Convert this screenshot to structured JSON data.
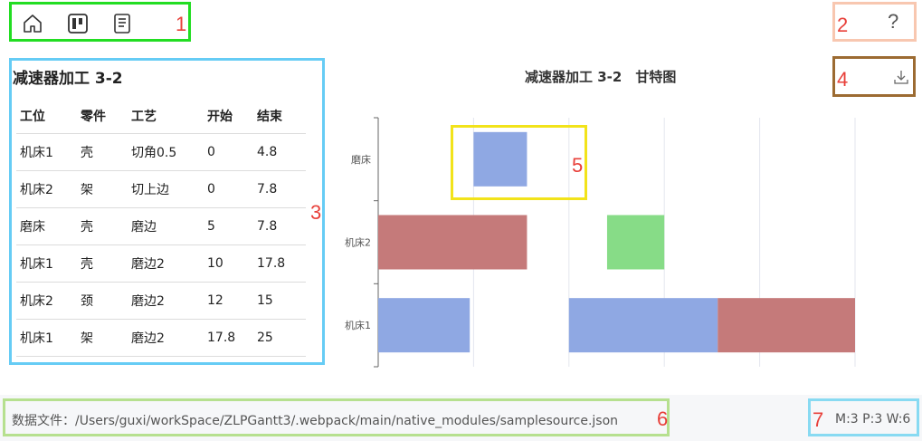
{
  "toolbar": {
    "icons": [
      "home-icon",
      "board-icon",
      "document-icon"
    ],
    "callout": "1"
  },
  "help": {
    "glyph": "?",
    "callout": "2"
  },
  "table": {
    "title": "减速器加工 3-2",
    "callout": "3",
    "columns": [
      "工位",
      "零件",
      "工艺",
      "开始",
      "结束"
    ],
    "rows": [
      [
        "机床1",
        "壳",
        "切角0.5",
        "0",
        "4.8"
      ],
      [
        "机床2",
        "架",
        "切上边",
        "0",
        "7.8"
      ],
      [
        "磨床",
        "壳",
        "磨边",
        "5",
        "7.8"
      ],
      [
        "机床1",
        "壳",
        "磨边2",
        "10",
        "17.8"
      ],
      [
        "机床2",
        "颈",
        "磨边2",
        "12",
        "15"
      ],
      [
        "机床1",
        "架",
        "磨边2",
        "17.8",
        "25"
      ]
    ]
  },
  "gantt": {
    "title": "减速器加工 3-2　甘特图",
    "download_callout": "4",
    "download_icon": "download-icon",
    "highlight_callout": "5"
  },
  "chart_data": {
    "type": "bar",
    "title": "减速器加工 3-2　甘特图",
    "categories": [
      "磨床",
      "机床2",
      "机床1"
    ],
    "xlim": [
      0,
      25
    ],
    "grid": true,
    "tasks": [
      {
        "machine": "机床1",
        "part": "壳",
        "start": 0,
        "end": 4.8,
        "color": "#8fa8e3"
      },
      {
        "machine": "机床2",
        "part": "架",
        "start": 0,
        "end": 7.8,
        "color": "#c57a7a"
      },
      {
        "machine": "磨床",
        "part": "壳",
        "start": 5,
        "end": 7.8,
        "color": "#8fa8e3"
      },
      {
        "machine": "机床1",
        "part": "壳",
        "start": 10,
        "end": 17.8,
        "color": "#8fa8e3"
      },
      {
        "machine": "机床2",
        "part": "颈",
        "start": 12,
        "end": 15,
        "color": "#87dc87"
      },
      {
        "machine": "机床1",
        "part": "架",
        "start": 17.8,
        "end": 25,
        "color": "#c57a7a"
      }
    ]
  },
  "footer": {
    "file_path": "数据文件：/Users/guxi/workSpace/ZLPGantt3/.webpack/main/native_modules/samplesource.json",
    "file_callout": "6",
    "stats": "M:3 P:3 W:6",
    "stats_callout": "7"
  },
  "colors": {
    "accent_blue": "#8fa8e3",
    "accent_red": "#c57a7a",
    "accent_green": "#87dc87",
    "callout_red": "#e8403a"
  }
}
